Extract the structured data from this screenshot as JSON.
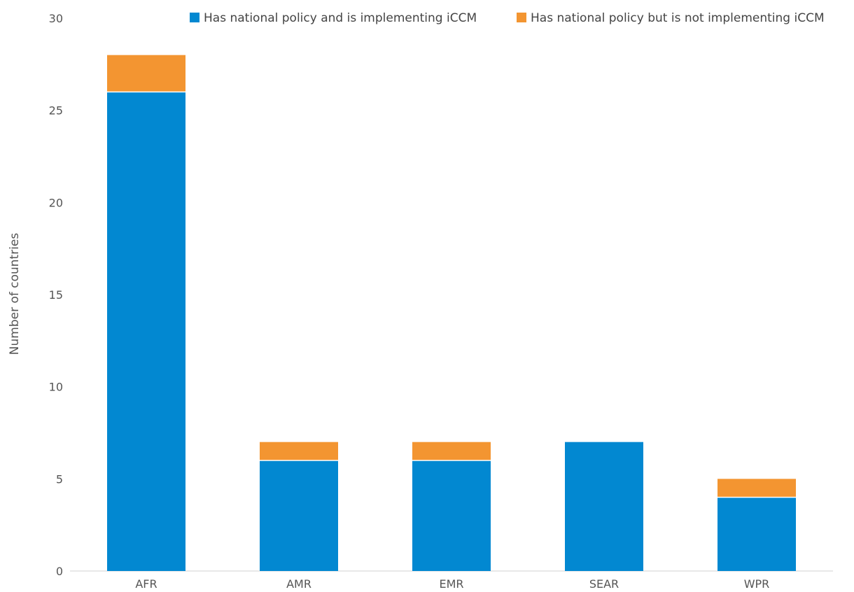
{
  "chart_data": {
    "type": "bar",
    "stacked": true,
    "categories": [
      "AFR",
      "AMR",
      "EMR",
      "SEAR",
      "WPR"
    ],
    "series": [
      {
        "name": "Has national policy and is implementing iCCM",
        "color": "#0288d1",
        "values": [
          26,
          6,
          6,
          7,
          4
        ]
      },
      {
        "name": "Has national policy but is not implementing iCCM",
        "color": "#f39531",
        "values": [
          2,
          1,
          1,
          0,
          1
        ]
      }
    ],
    "title": "",
    "xlabel": "",
    "ylabel": "Number of countries",
    "ylim": [
      0,
      30
    ],
    "yticks": [
      0,
      5,
      10,
      15,
      20,
      25,
      30
    ],
    "grid": false,
    "legend": "top-right"
  }
}
